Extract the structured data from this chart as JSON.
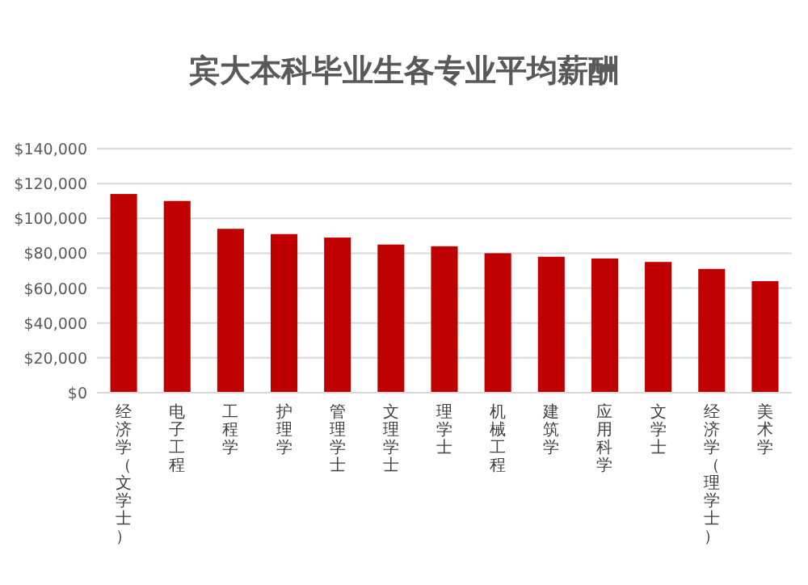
{
  "chart_data": {
    "type": "bar",
    "title": "宾大本科毕业生各专业平均薪酬",
    "categories": [
      "经济学（文学士）",
      "电子工程",
      "工程学",
      "护理学",
      "管理学士",
      "文理学士",
      "理学士",
      "机械工程",
      "建筑学",
      "应用科学",
      "文学士",
      "经济学（理学士）",
      "美术学"
    ],
    "values": [
      114000,
      110000,
      94000,
      91000,
      89000,
      85000,
      84000,
      80000,
      78000,
      77000,
      75000,
      71000,
      64000
    ],
    "color": "#c00000",
    "ylim": [
      0,
      140000
    ],
    "yticks": [
      {
        "value": 0,
        "label": "$0"
      },
      {
        "value": 20000,
        "label": "$20,000"
      },
      {
        "value": 40000,
        "label": "$40,000"
      },
      {
        "value": 60000,
        "label": "$60,000"
      },
      {
        "value": 80000,
        "label": "$80,000"
      },
      {
        "value": 100000,
        "label": "$100,000"
      },
      {
        "value": 120000,
        "label": "$120,000"
      },
      {
        "value": 140000,
        "label": "$140,000"
      }
    ],
    "grid": "y"
  }
}
